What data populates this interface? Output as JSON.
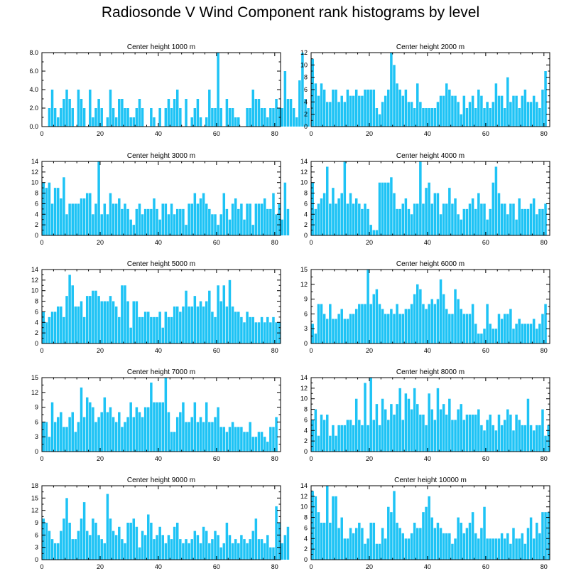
{
  "page": {
    "title": "Radiosonde V Wind Component rank histograms by level"
  },
  "chart_data": [
    {
      "type": "bar",
      "title": "Center height 1000 m",
      "xlim": [
        0,
        82
      ],
      "ylim": [
        0,
        8
      ],
      "xticks": [
        0,
        20,
        40,
        60,
        80
      ],
      "yticks": [
        0,
        2,
        4,
        6,
        8
      ],
      "ytick_labels": [
        "0.0",
        "2.0",
        "4.0",
        "6.0",
        "8.0"
      ],
      "bar_color": "#1ec3f5",
      "values": [
        0,
        0,
        2,
        4,
        2,
        1,
        2,
        3,
        4,
        3,
        2,
        0,
        4,
        3,
        2,
        0,
        4,
        1,
        2,
        3,
        2,
        0,
        1,
        4,
        2,
        1,
        3,
        3,
        2,
        2,
        1,
        1,
        2,
        3,
        2,
        0,
        0,
        2,
        1,
        0,
        2,
        0,
        2,
        3,
        2,
        3,
        4,
        2,
        0,
        3,
        0,
        1,
        2,
        3,
        1,
        0,
        1,
        4,
        2,
        2,
        8,
        2,
        0,
        3,
        2,
        2,
        1,
        1,
        0,
        0,
        2,
        2,
        4,
        3,
        3,
        2,
        2,
        1,
        2,
        2,
        3,
        2,
        2,
        6,
        3,
        3,
        2,
        1,
        5,
        8,
        3,
        2
      ]
    },
    {
      "type": "bar",
      "title": "Center height 2000 m",
      "xlim": [
        0,
        82
      ],
      "ylim": [
        0,
        12
      ],
      "xticks": [
        0,
        20,
        40,
        60,
        80
      ],
      "yticks": [
        0,
        2,
        4,
        6,
        8,
        10,
        12
      ],
      "bar_color": "#1ec3f5",
      "values": [
        11,
        7,
        5,
        7,
        6,
        4,
        4,
        6,
        6,
        4,
        5,
        4,
        6,
        5,
        5,
        6,
        5,
        5,
        6,
        6,
        6,
        6,
        3,
        2,
        4,
        5,
        6,
        12,
        10,
        7,
        6,
        5,
        6,
        4,
        4,
        3,
        7,
        4,
        3,
        3,
        3,
        3,
        3,
        4,
        5,
        5,
        7,
        6,
        5,
        5,
        4,
        2,
        5,
        3,
        4,
        5,
        3,
        6,
        5,
        3,
        4,
        3,
        4,
        7,
        5,
        5,
        3,
        8,
        4,
        5,
        5,
        3,
        5,
        6,
        4,
        4,
        5,
        4,
        3,
        6,
        9
      ]
    },
    {
      "type": "bar",
      "title": "Center height 3000 m",
      "xlim": [
        0,
        82
      ],
      "ylim": [
        0,
        14
      ],
      "xticks": [
        0,
        20,
        40,
        60,
        80
      ],
      "yticks": [
        0,
        2,
        4,
        6,
        8,
        10,
        12,
        14
      ],
      "bar_color": "#1ec3f5",
      "values": [
        10,
        9,
        10,
        6,
        9,
        9,
        7,
        11,
        4,
        6,
        6,
        6,
        6,
        7,
        7,
        8,
        8,
        4,
        6,
        14,
        4,
        6,
        4,
        8,
        6,
        6,
        7,
        5,
        6,
        5,
        3,
        2,
        5,
        6,
        4,
        5,
        5,
        5,
        7,
        5,
        3,
        6,
        6,
        4,
        6,
        4,
        5,
        5,
        5,
        2,
        6,
        6,
        8,
        6,
        7,
        8,
        6,
        5,
        4,
        4,
        2,
        4,
        8,
        5,
        3,
        6,
        7,
        5,
        6,
        3,
        6,
        6,
        2,
        6,
        6,
        6,
        7,
        5,
        5,
        8,
        4,
        6,
        3,
        10,
        5
      ]
    },
    {
      "type": "bar",
      "title": "Center height 4000 m",
      "xlim": [
        0,
        82
      ],
      "ylim": [
        0,
        14
      ],
      "xticks": [
        0,
        20,
        40,
        60,
        80
      ],
      "yticks": [
        0,
        2,
        4,
        6,
        8,
        10,
        12,
        14
      ],
      "bar_color": "#1ec3f5",
      "values": [
        10,
        5,
        6,
        7,
        8,
        13,
        6,
        9,
        6,
        7,
        8,
        14,
        6,
        8,
        6,
        7,
        6,
        5,
        6,
        5,
        2,
        1,
        1,
        10,
        10,
        10,
        10,
        11,
        8,
        5,
        5,
        6,
        7,
        5,
        4,
        6,
        6,
        14,
        6,
        9,
        10,
        6,
        8,
        8,
        4,
        6,
        6,
        9,
        6,
        7,
        4,
        3,
        5,
        5,
        6,
        7,
        5,
        8,
        6,
        6,
        3,
        5,
        10,
        13,
        8,
        6,
        6,
        4,
        6,
        6,
        3,
        7,
        5,
        5,
        5,
        6,
        7,
        4,
        5,
        5,
        6
      ]
    },
    {
      "type": "bar",
      "title": "Center height 5000 m",
      "xlim": [
        0,
        82
      ],
      "ylim": [
        0,
        14
      ],
      "xticks": [
        0,
        20,
        40,
        60,
        80
      ],
      "yticks": [
        0,
        2,
        4,
        6,
        8,
        10,
        12,
        14
      ],
      "bar_color": "#1ec3f5",
      "values": [
        6,
        4,
        5,
        6,
        6,
        7,
        7,
        5,
        9,
        13,
        11,
        7,
        7,
        8,
        5,
        9,
        9,
        10,
        10,
        9,
        8,
        8,
        8,
        9,
        8,
        7,
        5,
        11,
        11,
        8,
        3,
        8,
        8,
        5,
        5,
        6,
        6,
        5,
        5,
        5,
        6,
        3,
        6,
        5,
        5,
        7,
        7,
        6,
        7,
        10,
        7,
        7,
        9,
        7,
        8,
        7,
        8,
        10,
        6,
        5,
        11,
        8,
        11,
        7,
        12,
        7,
        6,
        6,
        5,
        4,
        6,
        5,
        5,
        4,
        4,
        5,
        4,
        5,
        4,
        5,
        4,
        4
      ]
    },
    {
      "type": "bar",
      "title": "Center height 6000 m",
      "xlim": [
        0,
        82
      ],
      "ylim": [
        0,
        15
      ],
      "xticks": [
        0,
        20,
        40,
        60,
        80
      ],
      "yticks": [
        0,
        3,
        6,
        9,
        12,
        15
      ],
      "bar_color": "#1ec3f5",
      "values": [
        4,
        2,
        8,
        8,
        6,
        5,
        8,
        5,
        5,
        6,
        7,
        5,
        5,
        6,
        6,
        7,
        8,
        8,
        8,
        15,
        8,
        10,
        11,
        8,
        7,
        6,
        6,
        7,
        6,
        8,
        6,
        6,
        7,
        7,
        8,
        10,
        12,
        11,
        8,
        7,
        8,
        9,
        8,
        9,
        13,
        10,
        7,
        6,
        6,
        11,
        9,
        7,
        6,
        6,
        6,
        8,
        4,
        2,
        2,
        3,
        8,
        4,
        3,
        3,
        6,
        5,
        6,
        6,
        7,
        3,
        4,
        5,
        4,
        4,
        4,
        4,
        5,
        3,
        4,
        6,
        8
      ]
    },
    {
      "type": "bar",
      "title": "Center height 7000 m",
      "xlim": [
        0,
        82
      ],
      "ylim": [
        0,
        15
      ],
      "xticks": [
        0,
        20,
        40,
        60,
        80
      ],
      "yticks": [
        0,
        3,
        6,
        9,
        12,
        15
      ],
      "bar_color": "#1ec3f5",
      "values": [
        6,
        6,
        3,
        10,
        6,
        7,
        8,
        5,
        5,
        7,
        8,
        4,
        6,
        13,
        7,
        11,
        10,
        9,
        6,
        7,
        8,
        11,
        8,
        9,
        7,
        6,
        8,
        5,
        6,
        7,
        10,
        7,
        9,
        8,
        7,
        9,
        9,
        14,
        10,
        10,
        10,
        10,
        15,
        8,
        4,
        4,
        7,
        8,
        10,
        6,
        6,
        7,
        10,
        6,
        7,
        6,
        10,
        6,
        6,
        7,
        9,
        5,
        5,
        4,
        5,
        6,
        5,
        5,
        5,
        4,
        4,
        6,
        3,
        3,
        4,
        4,
        3,
        2,
        5,
        5,
        7
      ]
    },
    {
      "type": "bar",
      "title": "Center height 8000 m",
      "xlim": [
        0,
        82
      ],
      "ylim": [
        0,
        14
      ],
      "xticks": [
        0,
        20,
        40,
        60,
        80
      ],
      "yticks": [
        0,
        2,
        4,
        6,
        8,
        10,
        12,
        14
      ],
      "bar_color": "#1ec3f5",
      "values": [
        6,
        8,
        3,
        7,
        6,
        7,
        3,
        5,
        3,
        5,
        5,
        5,
        6,
        6,
        5,
        10,
        6,
        5,
        13,
        5,
        14,
        6,
        9,
        5,
        10,
        8,
        6,
        9,
        7,
        9,
        12,
        6,
        11,
        10,
        8,
        12,
        9,
        7,
        7,
        5,
        11,
        8,
        6,
        12,
        8,
        9,
        7,
        10,
        6,
        6,
        8,
        9,
        6,
        7,
        7,
        7,
        7,
        8,
        5,
        4,
        6,
        7,
        5,
        4,
        7,
        5,
        6,
        8,
        7,
        4,
        7,
        6,
        5,
        5,
        10,
        5,
        4,
        5,
        5,
        8,
        3,
        5
      ]
    },
    {
      "type": "bar",
      "title": "Center height 9000 m",
      "xlim": [
        0,
        82
      ],
      "ylim": [
        0,
        18
      ],
      "xticks": [
        0,
        20,
        40,
        60,
        80
      ],
      "yticks": [
        0,
        3,
        6,
        9,
        12,
        15,
        18
      ],
      "bar_color": "#1ec3f5",
      "values": [
        10,
        9,
        7,
        5,
        4,
        4,
        7,
        10,
        15,
        9,
        5,
        5,
        7,
        10,
        14,
        7,
        6,
        10,
        9,
        6,
        5,
        4,
        16,
        10,
        7,
        6,
        8,
        5,
        4,
        9,
        9,
        10,
        8,
        3,
        7,
        6,
        11,
        9,
        5,
        6,
        8,
        6,
        4,
        6,
        5,
        8,
        9,
        5,
        4,
        5,
        4,
        5,
        7,
        6,
        4,
        8,
        7,
        4,
        5,
        7,
        6,
        3,
        4,
        9,
        6,
        4,
        5,
        4,
        6,
        5,
        4,
        5,
        7,
        10,
        5,
        5,
        4,
        6,
        3,
        3,
        13,
        9,
        4,
        6,
        8
      ]
    },
    {
      "type": "bar",
      "title": "Center height 10000 m",
      "xlim": [
        0,
        82
      ],
      "ylim": [
        0,
        14
      ],
      "xticks": [
        0,
        20,
        40,
        60,
        80
      ],
      "yticks": [
        0,
        2,
        4,
        6,
        8,
        10,
        12,
        14
      ],
      "bar_color": "#1ec3f5",
      "values": [
        13,
        12,
        9,
        7,
        7,
        14,
        7,
        12,
        12,
        6,
        8,
        4,
        4,
        6,
        5,
        6,
        7,
        6,
        3,
        4,
        7,
        7,
        3,
        3,
        6,
        4,
        10,
        9,
        13,
        7,
        6,
        5,
        4,
        4,
        5,
        7,
        6,
        6,
        9,
        10,
        12,
        8,
        6,
        7,
        6,
        5,
        5,
        5,
        3,
        4,
        8,
        7,
        5,
        6,
        7,
        9,
        5,
        4,
        6,
        10,
        4,
        4,
        4,
        4,
        4,
        5,
        4,
        5,
        3,
        6,
        4,
        4,
        5,
        3,
        6,
        8,
        4,
        7,
        5,
        9,
        9,
        9
      ]
    }
  ]
}
